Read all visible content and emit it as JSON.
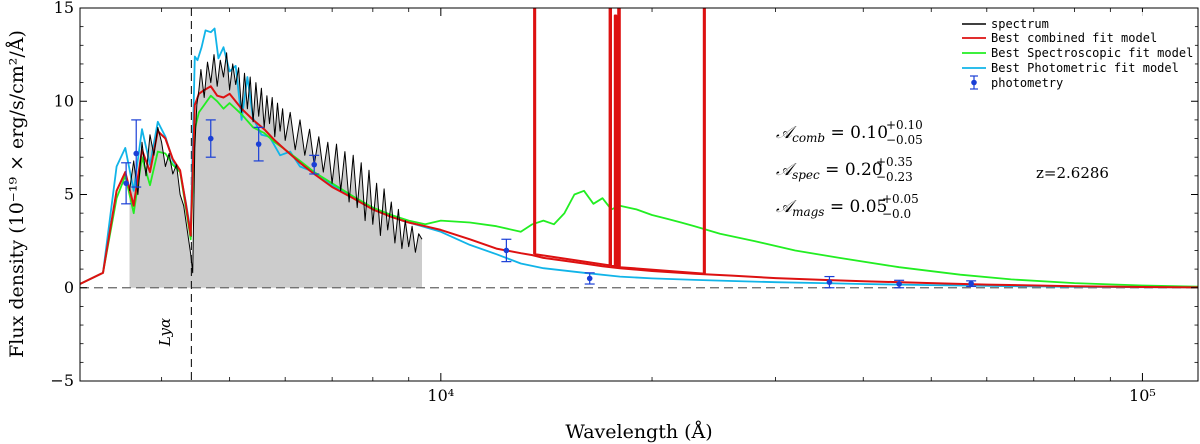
{
  "chart_data": {
    "type": "line",
    "title": "",
    "xlabel": "Wavelength (Å)",
    "ylabel": "Flux density (10⁻¹⁹ × erg/s/cm²/Å)",
    "xscale": "log",
    "xlim": [
      3060,
      120000
    ],
    "ylim": [
      -5,
      15
    ],
    "x_ticks": [
      {
        "value": 10000,
        "label": "10⁴"
      },
      {
        "value": 100000,
        "label": "10⁵"
      }
    ],
    "y_ticks": [
      {
        "value": -5,
        "label": "−5"
      },
      {
        "value": 0,
        "label": "0"
      },
      {
        "value": 5,
        "label": "5"
      },
      {
        "value": 10,
        "label": "10"
      },
      {
        "value": 15,
        "label": "15"
      }
    ],
    "reference_lines": {
      "zero_line_y": 0,
      "lyman_alpha_x": 4410,
      "lyman_alpha_label": "Lyα"
    },
    "colors": {
      "spectrum": "#000000",
      "combined": "#dd1111",
      "spectroscopic": "#22ee22",
      "photometric": "#11b4e8",
      "photometry": "#1a3fd6",
      "fill": "#cccccc"
    },
    "legend": [
      {
        "label": "spectrum",
        "color": "#000000",
        "kind": "line"
      },
      {
        "label": "Best combined fit model",
        "color": "#dd1111",
        "kind": "line"
      },
      {
        "label": "Best Spectroscopic fit model",
        "color": "#22ee22",
        "kind": "line"
      },
      {
        "label": "Best Photometric fit model",
        "color": "#11b4e8",
        "kind": "line"
      },
      {
        "label": "photometry",
        "color": "#1a3fd6",
        "kind": "errorbar"
      }
    ],
    "annotations": [
      {
        "text": "A_comb = 0.10 +0.10 −0.05",
        "base": "𝒜",
        "sub": "comb",
        "value": " = 0.10",
        "sup_plus": "+0.10",
        "sup_minus": "−0.05"
      },
      {
        "text": "A_spec = 0.20 +0.35 −0.23",
        "base": "𝒜",
        "sub": "spec",
        "value": " = 0.20",
        "sup_plus": "+0.35",
        "sup_minus": "−0.23"
      },
      {
        "text": "A_mags = 0.05 +0.05 −0.0",
        "base": "𝒜",
        "sub": "mags",
        "value": " = 0.05",
        "sup_plus": "+0.05",
        "sup_minus": "−0.0"
      }
    ],
    "redshift_label": "z=2.6286",
    "photometry_points": [
      {
        "x": 3560,
        "y": 5.6,
        "err": 1.1
      },
      {
        "x": 3680,
        "y": 7.2,
        "err": 1.8
      },
      {
        "x": 4700,
        "y": 8.0,
        "err": 1.0
      },
      {
        "x": 5500,
        "y": 7.7,
        "err": 0.9
      },
      {
        "x": 6600,
        "y": 6.6,
        "err": 0.5
      },
      {
        "x": 12400,
        "y": 2.0,
        "err": 0.6
      },
      {
        "x": 16300,
        "y": 0.5,
        "err": 0.3
      },
      {
        "x": 35800,
        "y": 0.3,
        "err": 0.3
      },
      {
        "x": 45000,
        "y": 0.2,
        "err": 0.2
      },
      {
        "x": 57000,
        "y": 0.22,
        "err": 0.15
      }
    ],
    "series": [
      {
        "name": "Best Photometric fit model",
        "color": "#11b4e8",
        "x": [
          3060,
          3300,
          3450,
          3550,
          3650,
          3750,
          3850,
          3950,
          4050,
          4150,
          4250,
          4330,
          4400,
          4460,
          4500,
          4560,
          4620,
          4700,
          4760,
          4820,
          4900,
          5000,
          5100,
          5200,
          5300,
          5400,
          5550,
          5700,
          5900,
          6100,
          6300,
          6600,
          7000,
          7400,
          7800,
          8300,
          8800,
          9400,
          10000,
          11000,
          12000,
          13000,
          14000,
          16000,
          18000,
          20000,
          23000,
          26000,
          30000,
          35000,
          40000,
          50000,
          60000,
          70000,
          80000,
          100000,
          120000
        ],
        "y": [
          0.2,
          0.8,
          6.5,
          7.5,
          5.2,
          8.5,
          6.6,
          8.9,
          8.1,
          6.8,
          6.2,
          4.6,
          3.0,
          12.4,
          12.2,
          12.9,
          13.8,
          13.7,
          13.9,
          12.3,
          12.9,
          11.6,
          11.9,
          9.0,
          11.3,
          9.1,
          8.2,
          8.1,
          7.1,
          7.3,
          6.5,
          6.2,
          5.5,
          5.0,
          4.5,
          4.0,
          3.6,
          3.3,
          3.0,
          2.3,
          1.8,
          1.3,
          1.05,
          0.8,
          0.6,
          0.5,
          0.42,
          0.36,
          0.3,
          0.25,
          0.2,
          0.14,
          0.1,
          0.07,
          0.05,
          0.03,
          0.02
        ]
      },
      {
        "name": "Best Spectroscopic fit model",
        "color": "#22ee22",
        "x": [
          3060,
          3300,
          3450,
          3550,
          3650,
          3750,
          3850,
          3950,
          4050,
          4150,
          4250,
          4330,
          4400,
          4460,
          4520,
          4600,
          4700,
          4800,
          4900,
          5000,
          5200,
          5400,
          5600,
          5800,
          6000,
          6300,
          6600,
          7000,
          7500,
          8000,
          8500,
          9000,
          9500,
          10000,
          11000,
          12000,
          13000,
          13500,
          14000,
          14500,
          15000,
          15500,
          16000,
          16500,
          17000,
          17500,
          18000,
          18500,
          19000,
          20000,
          21000,
          22000,
          23000,
          25000,
          28000,
          32000,
          37000,
          45000,
          55000,
          65000,
          80000,
          100000,
          120000
        ],
        "y": [
          0.2,
          0.8,
          4.8,
          6.0,
          4.0,
          7.0,
          5.5,
          7.3,
          7.2,
          6.6,
          6.2,
          4.3,
          2.6,
          8.5,
          9.4,
          9.8,
          10.3,
          10.0,
          9.6,
          9.9,
          9.3,
          8.6,
          8.3,
          7.8,
          7.4,
          6.8,
          6.2,
          5.6,
          4.9,
          4.3,
          3.9,
          3.6,
          3.4,
          3.6,
          3.5,
          3.3,
          3.0,
          3.4,
          3.6,
          3.4,
          4.0,
          5.0,
          5.2,
          4.5,
          4.8,
          4.2,
          4.4,
          4.3,
          4.2,
          3.9,
          3.7,
          3.5,
          3.3,
          2.9,
          2.5,
          2.0,
          1.6,
          1.1,
          0.7,
          0.45,
          0.25,
          0.12,
          0.06
        ]
      },
      {
        "name": "Best combined fit model",
        "color": "#dd1111",
        "x": [
          3060,
          3300,
          3450,
          3550,
          3650,
          3750,
          3850,
          3950,
          4050,
          4150,
          4250,
          4330,
          4400,
          4460,
          4520,
          4600,
          4700,
          4800,
          4900,
          5000,
          5200,
          5400,
          5600,
          5800,
          6000,
          6300,
          6600,
          7000,
          7500,
          8000,
          8500,
          9000,
          9500,
          10000,
          11000,
          12000,
          13000,
          13500,
          14000,
          15000,
          16000,
          17000,
          18000,
          20000,
          23000,
          26000,
          30000,
          35000,
          40000,
          50000,
          60000,
          80000,
          100000,
          120000
        ],
        "y": [
          0.2,
          0.8,
          5.2,
          6.2,
          4.4,
          7.4,
          6.2,
          8.4,
          8.0,
          6.9,
          6.3,
          4.5,
          2.8,
          9.8,
          10.4,
          10.6,
          10.8,
          10.3,
          10.2,
          10.4,
          9.6,
          9.0,
          8.5,
          7.9,
          7.4,
          6.7,
          6.1,
          5.4,
          4.8,
          4.2,
          3.8,
          3.5,
          3.3,
          3.1,
          2.6,
          2.1,
          1.85,
          1.75,
          1.6,
          1.45,
          1.3,
          1.15,
          1.05,
          0.9,
          0.75,
          0.65,
          0.52,
          0.42,
          0.35,
          0.25,
          0.17,
          0.08,
          0.04,
          0.02
        ]
      },
      {
        "name": "Best combined fit model (emission lines)",
        "color": "#dd1111",
        "x": [
          13580,
          13580,
          13630,
          13630,
          17400,
          17400,
          17480,
          17480,
          17700,
          17700,
          17780,
          17780,
          17900,
          17900,
          17990,
          17990,
          23700,
          23700,
          23790,
          23790
        ],
        "y": [
          1.8,
          15,
          15,
          1.8,
          1.2,
          15,
          15,
          1.2,
          1.15,
          14.6,
          14.6,
          1.15,
          1.1,
          15,
          15,
          1.1,
          0.76,
          15,
          15,
          0.76
        ]
      },
      {
        "name": "spectrum",
        "color": "#000000",
        "x": [
          3600,
          3650,
          3700,
          3750,
          3800,
          3850,
          3900,
          3950,
          4000,
          4050,
          4100,
          4150,
          4200,
          4250,
          4300,
          4350,
          4400,
          4430,
          4460,
          4490,
          4520,
          4550,
          4600,
          4650,
          4700,
          4750,
          4800,
          4850,
          4900,
          4950,
          5000,
          5050,
          5100,
          5150,
          5200,
          5250,
          5300,
          5350,
          5400,
          5450,
          5500,
          5550,
          5600,
          5650,
          5700,
          5750,
          5800,
          5850,
          5900,
          5950,
          6000,
          6100,
          6200,
          6300,
          6400,
          6500,
          6600,
          6700,
          6800,
          6900,
          7000,
          7100,
          7200,
          7300,
          7400,
          7500,
          7600,
          7700,
          7800,
          7900,
          8000,
          8100,
          8200,
          8300,
          8400,
          8500,
          8600,
          8700,
          8800,
          8900,
          9000,
          9100,
          9200,
          9300,
          9400
        ],
        "y": [
          5.2,
          6.8,
          5.0,
          7.8,
          6.0,
          8.2,
          7.1,
          8.6,
          7.8,
          6.5,
          7.2,
          6.1,
          6.6,
          5.0,
          4.4,
          3.1,
          1.8,
          0.8,
          7.5,
          9.8,
          10.6,
          11.7,
          10.2,
          12.1,
          11.0,
          12.5,
          10.8,
          12.2,
          11.3,
          12.6,
          10.6,
          12.0,
          10.9,
          11.8,
          9.4,
          11.5,
          9.6,
          11.3,
          8.9,
          11.0,
          9.2,
          10.7,
          8.6,
          10.3,
          8.8,
          10.2,
          8.1,
          9.9,
          8.4,
          9.6,
          7.9,
          9.4,
          7.4,
          9.0,
          7.1,
          8.5,
          6.6,
          8.1,
          6.2,
          7.8,
          5.6,
          7.7,
          5.2,
          7.3,
          4.6,
          7.1,
          4.3,
          6.7,
          3.6,
          6.3,
          3.4,
          5.6,
          2.8,
          5.3,
          3.1,
          4.6,
          2.4,
          4.2,
          2.1,
          3.6,
          2.2,
          3.3,
          1.9,
          2.9,
          2.6
        ]
      }
    ]
  }
}
